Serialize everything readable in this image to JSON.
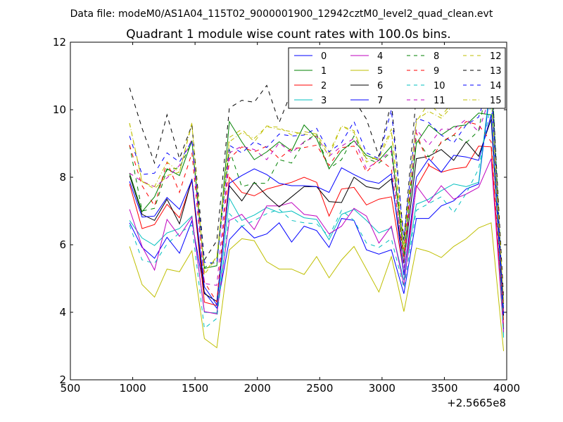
{
  "suptitle": "Data file: modeM0/AS1A04_115T02_9000001900_12942cztM0_level2_quad_clean.evt",
  "chart_data": {
    "type": "line",
    "title": "Quadrant 1 module wise count rates with 100.0s bins.",
    "xlabel": "",
    "ylabel": "",
    "x_offset_label": "+2.5665e8",
    "xlim": [
      500,
      4000
    ],
    "ylim": [
      2,
      12
    ],
    "xticks": [
      500,
      1000,
      1500,
      2000,
      2500,
      3000,
      3500,
      4000
    ],
    "yticks": [
      2,
      4,
      6,
      8,
      10,
      12
    ],
    "grid": false,
    "legend_position": "top-right",
    "legend_columns": 4,
    "x": [
      975,
      1075,
      1175,
      1275,
      1375,
      1475,
      1575,
      1675,
      1775,
      1875,
      1975,
      2075,
      2175,
      2275,
      2375,
      2475,
      2575,
      2675,
      2775,
      2875,
      2975,
      3075,
      3175,
      3275,
      3375,
      3475,
      3575,
      3675,
      3775,
      3875,
      3975
    ],
    "series": [
      {
        "name": "0",
        "color": "#0000ff",
        "dash": "solid",
        "values": [
          6.65,
          5.92,
          5.6,
          6.22,
          5.75,
          6.71,
          4.6,
          4.12,
          6.15,
          6.55,
          6.2,
          6.32,
          6.65,
          6.08,
          6.55,
          6.42,
          5.92,
          6.78,
          6.72,
          5.85,
          5.72,
          5.85,
          4.55,
          6.78,
          6.78,
          7.15,
          7.3,
          7.65,
          7.8,
          10.8,
          3.5
        ]
      },
      {
        "name": "1",
        "color": "#008000",
        "dash": "solid",
        "values": [
          8.12,
          6.98,
          7.42,
          8.25,
          8.05,
          9.08,
          5.3,
          5.38,
          9.65,
          9.05,
          8.52,
          8.75,
          9.05,
          8.78,
          9.55,
          9.15,
          8.25,
          8.78,
          9.08,
          8.65,
          8.5,
          8.92,
          5.7,
          9.0,
          9.55,
          9.25,
          9.5,
          9.55,
          9.9,
          9.85,
          4.25
        ]
      },
      {
        "name": "2",
        "color": "#ff0000",
        "dash": "solid",
        "values": [
          7.8,
          6.48,
          6.6,
          7.2,
          6.8,
          7.9,
          4.3,
          4.2,
          8.0,
          7.55,
          7.45,
          7.65,
          7.75,
          7.85,
          8.0,
          7.85,
          6.85,
          7.65,
          7.7,
          7.18,
          7.35,
          7.42,
          5.15,
          7.7,
          8.35,
          8.15,
          8.25,
          8.3,
          8.92,
          8.9,
          3.55
        ]
      },
      {
        "name": "3",
        "color": "#00bfbf",
        "dash": "solid",
        "values": [
          6.72,
          6.2,
          5.98,
          6.35,
          6.48,
          6.85,
          4.0,
          3.98,
          7.38,
          6.72,
          6.88,
          7.1,
          6.95,
          7.0,
          6.8,
          6.75,
          6.15,
          6.9,
          7.05,
          6.72,
          6.35,
          6.5,
          4.95,
          7.2,
          7.35,
          7.6,
          7.8,
          7.72,
          7.85,
          10.95,
          3.25
        ]
      },
      {
        "name": "4",
        "color": "#bf00bf",
        "dash": "solid",
        "values": [
          7.05,
          5.95,
          5.25,
          6.75,
          6.25,
          6.82,
          4.02,
          3.95,
          6.72,
          6.9,
          6.45,
          7.15,
          7.15,
          7.25,
          6.9,
          6.85,
          6.32,
          6.55,
          7.08,
          6.85,
          6.05,
          6.55,
          4.8,
          7.75,
          7.25,
          7.75,
          7.35,
          7.5,
          7.7,
          8.55,
          3.4
        ]
      },
      {
        "name": "5",
        "color": "#bfbf00",
        "dash": "solid",
        "values": [
          5.95,
          4.82,
          4.45,
          5.28,
          5.2,
          5.82,
          3.22,
          2.95,
          5.85,
          6.18,
          6.12,
          5.5,
          5.28,
          5.28,
          5.12,
          5.65,
          5.02,
          5.55,
          5.95,
          5.28,
          4.6,
          5.65,
          4.02,
          5.9,
          5.8,
          5.62,
          5.95,
          6.18,
          6.5,
          6.65,
          2.85
        ]
      },
      {
        "name": "6",
        "color": "#000000",
        "dash": "solid",
        "values": [
          8.05,
          6.9,
          6.72,
          7.35,
          6.62,
          7.95,
          4.55,
          4.32,
          7.75,
          7.3,
          7.85,
          7.45,
          7.12,
          7.42,
          7.72,
          7.72,
          7.28,
          7.25,
          8.0,
          7.72,
          7.65,
          7.95,
          5.45,
          8.55,
          8.62,
          8.82,
          8.5,
          9.05,
          8.62,
          9.72,
          3.9
        ]
      },
      {
        "name": "7",
        "color": "#0000ff",
        "dash": "solid",
        "values": [
          7.88,
          6.82,
          6.85,
          7.4,
          7.05,
          7.92,
          4.75,
          4.22,
          7.82,
          8.05,
          8.25,
          8.08,
          7.82,
          7.75,
          7.75,
          7.72,
          7.55,
          8.28,
          8.08,
          7.9,
          7.82,
          8.1,
          5.1,
          8.0,
          8.55,
          8.15,
          8.65,
          8.6,
          8.5,
          9.85,
          3.95
        ]
      },
      {
        "name": "8",
        "color": "#008000",
        "dash": "dash",
        "values": [
          8.95,
          7.0,
          7.08,
          8.22,
          8.28,
          9.05,
          5.32,
          5.55,
          8.82,
          7.72,
          7.82,
          7.82,
          8.52,
          8.42,
          9.05,
          9.28,
          8.25,
          8.52,
          9.22,
          8.55,
          8.42,
          8.75,
          6.02,
          9.15,
          8.6,
          9.02,
          9.25,
          9.02,
          9.38,
          11.4,
          4.02
        ]
      },
      {
        "name": "9",
        "color": "#ff0000",
        "dash": "dash",
        "values": [
          8.95,
          7.75,
          7.15,
          8.45,
          7.55,
          8.72,
          4.9,
          4.3,
          8.55,
          8.9,
          8.75,
          8.92,
          8.55,
          8.85,
          8.88,
          8.95,
          8.35,
          8.88,
          8.92,
          8.15,
          8.55,
          8.25,
          5.65,
          9.32,
          8.35,
          9.05,
          9.25,
          9.65,
          9.55,
          9.05,
          3.75
        ]
      },
      {
        "name": "10",
        "color": "#00bfbf",
        "dash": "dash",
        "values": [
          6.58,
          5.55,
          5.45,
          6.02,
          6.35,
          6.58,
          3.52,
          3.82,
          6.92,
          6.55,
          6.72,
          6.92,
          7.05,
          6.72,
          6.65,
          6.62,
          6.25,
          7.02,
          6.72,
          6.05,
          5.92,
          6.18,
          4.72,
          7.02,
          7.22,
          7.42,
          6.95,
          7.52,
          8.25,
          10.2,
          3.28
        ]
      },
      {
        "name": "11",
        "color": "#bf00bf",
        "dash": "dash",
        "values": [
          8.12,
          7.88,
          7.72,
          7.98,
          8.35,
          9.12,
          4.85,
          4.8,
          8.72,
          8.92,
          8.82,
          8.52,
          9.02,
          8.72,
          9.05,
          9.22,
          8.62,
          8.92,
          9.15,
          8.25,
          8.5,
          8.78,
          5.32,
          9.42,
          8.95,
          9.42,
          9.42,
          9.72,
          9.35,
          10.5,
          3.95
        ]
      },
      {
        "name": "12",
        "color": "#bfbf00",
        "dash": "dash",
        "values": [
          9.6,
          7.88,
          7.65,
          8.05,
          8.15,
          9.62,
          5.18,
          5.65,
          9.18,
          9.42,
          9.05,
          9.52,
          9.48,
          9.25,
          9.35,
          9.28,
          8.72,
          9.52,
          9.38,
          8.45,
          8.65,
          9.42,
          6.02,
          9.65,
          10.2,
          9.82,
          10.25,
          10.18,
          10.45,
          10.45,
          4.28
        ]
      },
      {
        "name": "13",
        "color": "#000000",
        "dash": "dash",
        "values": [
          10.65,
          9.45,
          8.42,
          9.85,
          8.55,
          9.55,
          5.55,
          6.12,
          10.05,
          10.28,
          10.22,
          10.72,
          9.62,
          10.55,
          10.45,
          10.25,
          10.08,
          10.52,
          10.3,
          9.72,
          8.62,
          10.25,
          6.12,
          10.45,
          10.55,
          10.62,
          10.72,
          10.52,
          11.05,
          11.28,
          4.42
        ]
      },
      {
        "name": "14",
        "color": "#0000ff",
        "dash": "dash",
        "values": [
          9.22,
          8.08,
          8.12,
          8.72,
          8.45,
          9.08,
          5.48,
          5.45,
          8.95,
          8.72,
          9.05,
          8.88,
          9.28,
          9.22,
          9.25,
          9.45,
          8.75,
          9.02,
          9.65,
          8.72,
          8.55,
          10.0,
          6.15,
          9.75,
          9.62,
          9.25,
          9.02,
          9.55,
          9.78,
          10.95,
          3.95
        ]
      },
      {
        "name": "15",
        "color": "#bfbf00",
        "dash": "dashdot",
        "values": [
          9.6,
          7.85,
          7.72,
          8.45,
          8.15,
          9.58,
          5.12,
          5.62,
          9.05,
          9.32,
          9.15,
          9.5,
          9.42,
          9.35,
          9.28,
          9.22,
          8.62,
          9.52,
          9.32,
          8.55,
          8.55,
          9.35,
          5.85,
          9.7,
          9.95,
          9.75,
          10.15,
          10.05,
          10.35,
          10.42,
          4.35
        ]
      }
    ]
  }
}
